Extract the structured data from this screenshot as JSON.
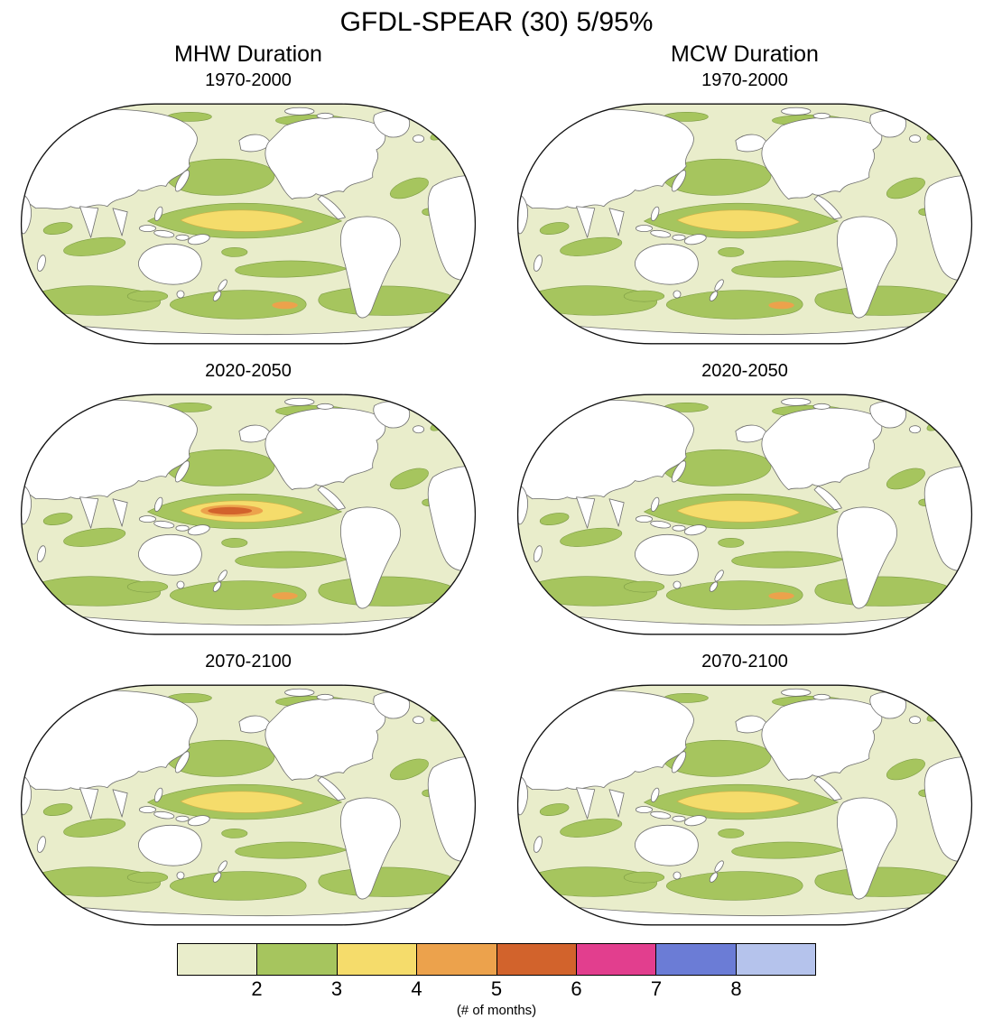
{
  "figure": {
    "title": "GFDL-SPEAR (30) 5/95%",
    "column_headers": [
      "MHW Duration",
      "MCW Duration"
    ]
  },
  "colorbar": {
    "ticks": [
      "2",
      "3",
      "4",
      "5",
      "6",
      "7",
      "8"
    ],
    "caption": "(# of months)",
    "colors": [
      "#e9edcb",
      "#a6c55e",
      "#f5dc6b",
      "#eca24c",
      "#d2632c",
      "#e23e8e",
      "#6b7cd6",
      "#b5c3ec"
    ]
  },
  "chart_data": {
    "type": "heatmap",
    "title": "GFDL-SPEAR (30) 5/95%",
    "columns": [
      "MHW Duration",
      "MCW Duration"
    ],
    "periods": [
      "1970-2000",
      "2020-2050",
      "2070-2100"
    ],
    "units": "# of months",
    "colorbar": {
      "tick_values": [
        2,
        3,
        4,
        5,
        6,
        7,
        8
      ],
      "bin_labels": [
        "<2",
        "2-3",
        "3-4",
        "4-5",
        "5-6",
        "6-7",
        "7-8",
        ">8"
      ],
      "colors": [
        "#e9edcb",
        "#a6c55e",
        "#f5dc6b",
        "#eca24c",
        "#d2632c",
        "#e23e8e",
        "#6b7cd6",
        "#b5c3ec"
      ],
      "legend_position": "bottom"
    },
    "panels": [
      {
        "variable": "MHW Duration",
        "period": "1970-2000",
        "typical_open_ocean_months": "1-2",
        "midlatitude_band_months": "2-3",
        "equatorial_east_pacific_max_months": "3-4",
        "equatorial_core": false,
        "southern_spot": true
      },
      {
        "variable": "MCW Duration",
        "period": "1970-2000",
        "typical_open_ocean_months": "1-2",
        "midlatitude_band_months": "2-3",
        "equatorial_east_pacific_max_months": "3-4",
        "equatorial_core": false,
        "southern_spot": true
      },
      {
        "variable": "MHW Duration",
        "period": "2020-2050",
        "typical_open_ocean_months": "1-2",
        "midlatitude_band_months": "2-3",
        "equatorial_east_pacific_max_months": "5-6",
        "equatorial_core": true,
        "southern_spot": true
      },
      {
        "variable": "MCW Duration",
        "period": "2020-2050",
        "typical_open_ocean_months": "1-2",
        "midlatitude_band_months": "2-3",
        "equatorial_east_pacific_max_months": "3-4",
        "equatorial_core": false,
        "southern_spot": true
      },
      {
        "variable": "MHW Duration",
        "period": "2070-2100",
        "typical_open_ocean_months": "1-2",
        "midlatitude_band_months": "2-3",
        "equatorial_east_pacific_max_months": "3-4",
        "equatorial_core": false,
        "southern_spot": false
      },
      {
        "variable": "MCW Duration",
        "period": "2070-2100",
        "typical_open_ocean_months": "1-2",
        "midlatitude_band_months": "2-3",
        "equatorial_east_pacific_max_months": "3-4",
        "equatorial_core": false,
        "southern_spot": false
      }
    ]
  }
}
